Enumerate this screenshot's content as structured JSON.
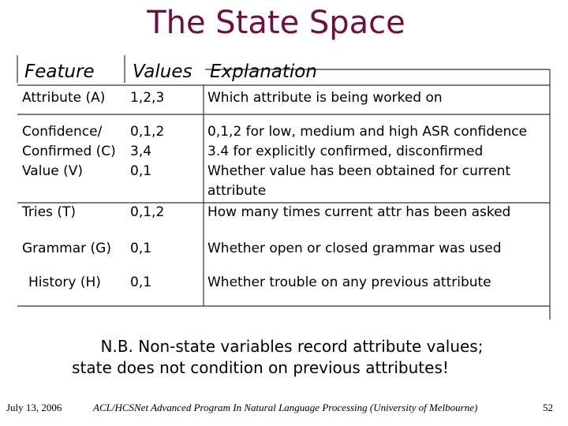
{
  "header": {
    "title": "The State Space"
  },
  "table": {
    "columns": [
      "Feature",
      "Values",
      "Explanation"
    ],
    "rows": [
      [
        "Attribute (A)",
        "1,2,3",
        "Which attribute is being worked on"
      ],
      [
        "Confidence/\nConfirmed (C)",
        "0,1,2\n3,4",
        "0,1,2 for low, medium and high ASR confidence\n3.4 for explicitly confirmed, disconfirmed"
      ],
      [
        "Value (V)",
        "0,1",
        "Whether value has been obtained for current\nattribute"
      ],
      [
        "Tries (T)",
        "0,1,2",
        "How many times current attr has been asked"
      ],
      [
        "Grammar (G)",
        "0,1",
        "Whether open or closed grammar was used"
      ],
      [
        "History (H)",
        "0,1",
        "Whether trouble on any previous attribute"
      ]
    ]
  },
  "note": [
    "N.B. Non-state variables record attribute values;",
    "state does not condition on previous attributes!"
  ],
  "footer": {
    "date": "July 13, 2006",
    "center": "ACL/HCSNet Advanced Program In Natural Language Processing (University of Melbourne)",
    "page": "52"
  }
}
